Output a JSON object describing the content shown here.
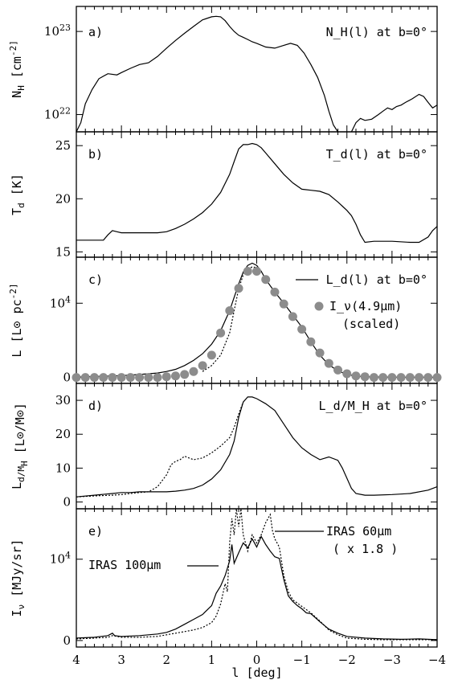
{
  "x_axis": {
    "label": "l [deg]",
    "ticks": [
      "4",
      "3",
      "2",
      "1",
      "0",
      "-1",
      "-2",
      "-3",
      "-4"
    ],
    "range": [
      4,
      -4
    ]
  },
  "chart_data": [
    {
      "type": "line",
      "panel": "a)",
      "title": "N_H(l) at b=0°",
      "ylabel": "N_H [cm^-2]",
      "yscale": "log",
      "ylim": [
        6.2e+21,
        2e+23
      ],
      "yticks": [
        {
          "value": 1e+22,
          "label": "10^22"
        },
        {
          "value": 1e+23,
          "label": "10^23"
        }
      ],
      "series": [
        {
          "style": "solid",
          "x": [
            4.0,
            3.9,
            3.8,
            3.65,
            3.5,
            3.3,
            3.1,
            3.0,
            2.8,
            2.6,
            2.4,
            2.2,
            2.0,
            1.8,
            1.6,
            1.4,
            1.2,
            1.0,
            0.9,
            0.8,
            0.7,
            0.6,
            0.5,
            0.4,
            0.3,
            0.2,
            0.1,
            0.0,
            -0.2,
            -0.4,
            -0.6,
            -0.75,
            -0.9,
            -1.05,
            -1.2,
            -1.35,
            -1.5,
            -1.6,
            -1.7,
            -1.8
          ],
          "y": [
            6.2e+21,
            8e+21,
            1.35e+22,
            2e+22,
            2.7e+22,
            3.1e+22,
            3e+22,
            3.2e+22,
            3.6e+22,
            4e+22,
            4.2e+22,
            5e+22,
            6.3e+22,
            7.8e+22,
            9.5e+22,
            1.15e+23,
            1.38e+23,
            1.5e+23,
            1.52e+23,
            1.5e+23,
            1.35e+23,
            1.15e+23,
            1e+23,
            9e+22,
            8.5e+22,
            8e+22,
            7.5e+22,
            7.2e+22,
            6.5e+22,
            6.3e+22,
            6.8e+22,
            7.2e+22,
            6.8e+22,
            5.5e+22,
            4e+22,
            2.8e+22,
            1.7e+22,
            1.1e+22,
            7.5e+21,
            6.2e+21
          ]
        },
        {
          "style": "solid",
          "x": [
            -2.1,
            -2.2,
            -2.3,
            -2.4,
            -2.55,
            -2.7,
            -2.8,
            -2.9,
            -3.0,
            -3.1,
            -3.2,
            -3.3,
            -3.45,
            -3.6,
            -3.7,
            -3.8,
            -3.9,
            -4.0
          ],
          "y": [
            6.2e+21,
            8e+21,
            9e+21,
            8.5e+21,
            8.8e+21,
            1e+22,
            1.1e+22,
            1.2e+22,
            1.15e+22,
            1.25e+22,
            1.3e+22,
            1.4e+22,
            1.55e+22,
            1.75e+22,
            1.65e+22,
            1.4e+22,
            1.2e+22,
            1.3e+22
          ]
        }
      ]
    },
    {
      "type": "line",
      "panel": "b)",
      "title": "T_d(l) at b=0°",
      "ylabel": "T_d [K]",
      "ylim": [
        14.5,
        26.3
      ],
      "yticks": [
        {
          "value": 15,
          "label": "15"
        },
        {
          "value": 20,
          "label": "20"
        },
        {
          "value": 25,
          "label": "25"
        }
      ],
      "series": [
        {
          "style": "solid",
          "x": [
            4.0,
            3.7,
            3.4,
            3.3,
            3.2,
            3.1,
            3.0,
            2.8,
            2.5,
            2.2,
            2.0,
            1.8,
            1.6,
            1.4,
            1.2,
            1.0,
            0.8,
            0.6,
            0.5,
            0.4,
            0.3,
            0.2,
            0.1,
            0.0,
            -0.1,
            -0.2,
            -0.4,
            -0.6,
            -0.8,
            -1.0,
            -1.2,
            -1.4,
            -1.6,
            -1.8,
            -1.9,
            -2.0,
            -2.1,
            -2.2,
            -2.3,
            -2.4,
            -2.6,
            -3.0,
            -3.4,
            -3.6,
            -3.8,
            -3.9,
            -4.0
          ],
          "y": [
            16.1,
            16.1,
            16.1,
            16.6,
            17.0,
            16.9,
            16.8,
            16.8,
            16.8,
            16.8,
            16.9,
            17.2,
            17.6,
            18.1,
            18.7,
            19.5,
            20.6,
            22.3,
            23.5,
            24.7,
            25.1,
            25.1,
            25.2,
            25.1,
            24.8,
            24.3,
            23.3,
            22.3,
            21.5,
            20.9,
            20.8,
            20.7,
            20.4,
            19.7,
            19.3,
            18.9,
            18.4,
            17.6,
            16.6,
            15.9,
            16.0,
            16.0,
            15.9,
            15.9,
            16.4,
            17.0,
            17.4
          ]
        }
      ]
    },
    {
      "type": "line",
      "panel": "c)",
      "ylabel": "L [L⊙ pc^-2]",
      "ylim": [
        -800,
        16200
      ],
      "yticks": [
        {
          "value": 0,
          "label": "0"
        },
        {
          "value": 10000,
          "label": "10^4"
        }
      ],
      "legend": [
        {
          "style": "solid",
          "label": "L_d(l) at b=0°"
        },
        {
          "style": "dot",
          "label": "I_ν(4.9μm)",
          "label2": "(scaled)"
        }
      ],
      "series": [
        {
          "style": "solid",
          "x": [
            4.0,
            3.5,
            3.0,
            2.6,
            2.2,
            2.0,
            1.8,
            1.6,
            1.4,
            1.2,
            1.0,
            0.8,
            0.6,
            0.5,
            0.4,
            0.3,
            0.2,
            0.1,
            0.0,
            -0.1,
            -0.2,
            -0.4,
            -0.6,
            -0.8,
            -1.0,
            -1.2,
            -1.4,
            -1.6,
            -1.8,
            -2.0,
            -2.2,
            -2.4,
            -2.8,
            -3.2,
            -3.6,
            -4.0
          ],
          "y": [
            50,
            150,
            250,
            400,
            600,
            800,
            1100,
            1600,
            2300,
            3200,
            4500,
            6300,
            9000,
            10800,
            12600,
            14200,
            15100,
            15400,
            15100,
            14300,
            13200,
            11500,
            10000,
            8400,
            6800,
            4800,
            3000,
            1700,
            900,
            400,
            200,
            100,
            50,
            30,
            30,
            30
          ]
        },
        {
          "style": "dotted",
          "x": [
            1.2,
            1.0,
            0.8,
            0.6,
            0.5,
            0.4,
            0.3,
            0.2,
            0.1,
            0.0
          ],
          "y": [
            800,
            1600,
            3000,
            6000,
            9000,
            12000,
            13800,
            14600,
            14900,
            14800
          ]
        },
        {
          "style": "dots",
          "x": [
            4.0,
            3.8,
            3.6,
            3.4,
            3.2,
            3.0,
            2.8,
            2.6,
            2.4,
            2.2,
            2.0,
            1.8,
            1.6,
            1.4,
            1.2,
            1.0,
            0.8,
            0.6,
            0.4,
            0.2,
            0.0,
            -0.2,
            -0.4,
            -0.6,
            -0.8,
            -1.0,
            -1.2,
            -1.4,
            -1.6,
            -1.8,
            -2.0,
            -2.2,
            -2.4,
            -2.6,
            -2.8,
            -3.0,
            -3.2,
            -3.4,
            -3.6,
            -3.8,
            -4.0
          ],
          "y": [
            0,
            0,
            0,
            0,
            0,
            0,
            0,
            0,
            0,
            0,
            100,
            200,
            400,
            800,
            1600,
            3000,
            6000,
            9000,
            12000,
            14300,
            14300,
            13200,
            11500,
            9900,
            8200,
            6500,
            4800,
            3300,
            1900,
            1000,
            500,
            200,
            100,
            0,
            0,
            0,
            0,
            0,
            0,
            0,
            0
          ]
        }
      ]
    },
    {
      "type": "line",
      "panel": "d)",
      "title": "L_d/M_H at b=0°",
      "ylabel": "L_d/M_H [L⊙/M⊙]",
      "ylim": [
        -2,
        35
      ],
      "yticks": [
        {
          "value": 0,
          "label": "0"
        },
        {
          "value": 10,
          "label": "10"
        },
        {
          "value": 20,
          "label": "20"
        },
        {
          "value": 30,
          "label": "30"
        }
      ],
      "series": [
        {
          "style": "solid",
          "x": [
            4.0,
            3.6,
            3.2,
            3.0,
            2.8,
            2.6,
            2.4,
            2.2,
            2.0,
            1.8,
            1.6,
            1.4,
            1.2,
            1.0,
            0.8,
            0.6,
            0.5,
            0.4,
            0.3,
            0.2,
            0.1,
            0.0,
            -0.2,
            -0.4,
            -0.6,
            -0.8,
            -1.0,
            -1.2,
            -1.4,
            -1.6,
            -1.8,
            -1.9,
            -2.0,
            -2.1,
            -2.2,
            -2.4,
            -2.6,
            -3.0,
            -3.4,
            -3.8,
            -4.0
          ],
          "y": [
            1.5,
            2.0,
            2.5,
            2.8,
            2.8,
            3.0,
            3.0,
            3.0,
            3.0,
            3.2,
            3.5,
            4.0,
            5.0,
            6.8,
            9.5,
            14.0,
            18.0,
            25.0,
            29.5,
            31.0,
            31.0,
            30.5,
            29.0,
            27.0,
            23.0,
            19.0,
            16.0,
            14.0,
            12.5,
            13.3,
            12.3,
            10.0,
            7.0,
            4.0,
            2.5,
            2.0,
            2.0,
            2.2,
            2.5,
            3.5,
            4.5
          ]
        },
        {
          "style": "dotted",
          "x": [
            4.0,
            3.6,
            3.2,
            3.0,
            2.8,
            2.6,
            2.4,
            2.2,
            2.0,
            1.9,
            1.8,
            1.7,
            1.6,
            1.5,
            1.4,
            1.2,
            1.0,
            0.8,
            0.6,
            0.5,
            0.4,
            0.3
          ],
          "y": [
            1.5,
            1.8,
            2.0,
            2.2,
            2.5,
            2.8,
            3.0,
            4.5,
            8.0,
            11.0,
            12.0,
            12.5,
            13.5,
            13.0,
            12.5,
            13.0,
            14.5,
            16.5,
            19.0,
            22.0,
            26.0,
            29.5
          ]
        }
      ]
    },
    {
      "type": "line",
      "panel": "e)",
      "ylabel": "I_ν [MJy/sr]",
      "ylim": [
        -800,
        16200
      ],
      "yticks": [
        {
          "value": 0,
          "label": "0"
        },
        {
          "value": 10000,
          "label": "10^4"
        }
      ],
      "annotations": [
        {
          "text": "IRAS 100μm",
          "series": 0
        },
        {
          "text": "IRAS 60μm",
          "text2": "( x 1.8 )",
          "series": 1
        }
      ],
      "series": [
        {
          "style": "solid",
          "name": "IRAS 100μm",
          "x": [
            4.0,
            3.6,
            3.3,
            3.2,
            3.15,
            3.0,
            2.6,
            2.2,
            2.0,
            1.8,
            1.6,
            1.4,
            1.2,
            1.0,
            0.9,
            0.8,
            0.7,
            0.6,
            0.55,
            0.5,
            0.4,
            0.3,
            0.2,
            0.1,
            0.0,
            -0.1,
            -0.2,
            -0.3,
            -0.4,
            -0.5,
            -0.6,
            -0.7,
            -0.8,
            -0.9,
            -1.0,
            -1.1,
            -1.2,
            -1.4,
            -1.6,
            -1.8,
            -2.0,
            -2.4,
            -2.8,
            -3.2,
            -3.6,
            -4.0
          ],
          "y": [
            300,
            400,
            600,
            900,
            600,
            500,
            600,
            800,
            1000,
            1400,
            2000,
            2600,
            3200,
            4300,
            5800,
            6700,
            8000,
            9800,
            11800,
            9500,
            10800,
            12000,
            11400,
            12500,
            11500,
            12800,
            11800,
            11000,
            10300,
            10100,
            7500,
            5500,
            4800,
            4300,
            3900,
            3400,
            3300,
            2300,
            1400,
            900,
            500,
            300,
            200,
            150,
            200,
            100
          ]
        },
        {
          "style": "dotted",
          "name": "IRAS 60μm",
          "x": [
            4.0,
            3.6,
            3.3,
            3.2,
            3.0,
            2.6,
            2.2,
            2.0,
            1.8,
            1.6,
            1.4,
            1.2,
            1.0,
            0.9,
            0.8,
            0.7,
            0.65,
            0.6,
            0.55,
            0.5,
            0.45,
            0.4,
            0.35,
            0.3,
            0.25,
            0.2,
            0.1,
            0.0,
            -0.1,
            -0.2,
            -0.3,
            -0.35,
            -0.4,
            -0.5,
            -0.6,
            -0.7,
            -0.8,
            -1.0,
            -1.2,
            -1.4,
            -1.6,
            -1.8,
            -2.0,
            -2.4,
            -2.8,
            -3.2,
            -3.6,
            -4.0
          ],
          "y": [
            200,
            300,
            400,
            600,
            400,
            400,
            500,
            700,
            900,
            1100,
            1300,
            1600,
            2200,
            3000,
            4500,
            7000,
            6000,
            12000,
            15000,
            13000,
            16200,
            14000,
            16200,
            13000,
            12000,
            11000,
            13000,
            12000,
            13000,
            14500,
            15500,
            13500,
            12500,
            11500,
            8000,
            6000,
            5000,
            4200,
            3400,
            2400,
            1300,
            700,
            300,
            150,
            100,
            100,
            100,
            100
          ]
        }
      ]
    }
  ]
}
